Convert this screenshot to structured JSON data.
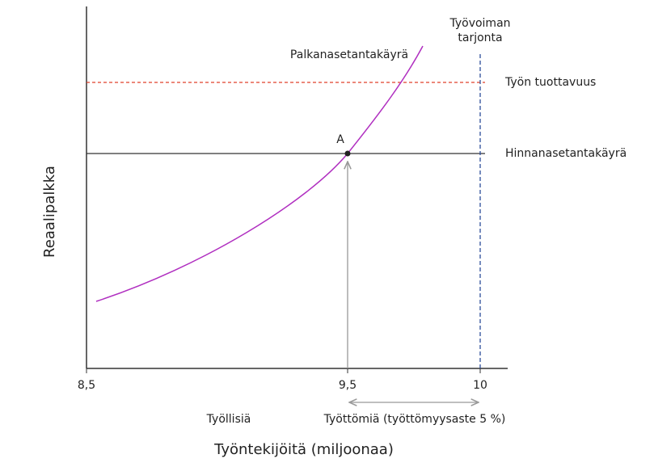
{
  "axes": {
    "y_label": "Reaalipalkka",
    "x_label": "Työntekijöitä (miljoonaa)",
    "x_ticks": [
      "8,5",
      "9,5",
      "10"
    ]
  },
  "curves": {
    "wage_setting": "Palkanasetantakäyrä",
    "productivity": "Työn tuottavuus",
    "price_setting": "Hinnanasetantakäyrä",
    "labour_supply": [
      "Työvoiman",
      "tarjonta"
    ]
  },
  "point": "A",
  "annotations": {
    "employed": "Työllisiä",
    "unemployed": "Työttömiä (työttömyysaste 5 %)"
  }
}
